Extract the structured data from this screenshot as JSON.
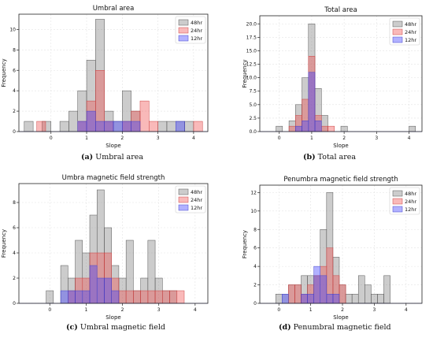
{
  "captions": [
    {
      "label": "(a)",
      "text": "Umbral area"
    },
    {
      "label": "(b)",
      "text": "Total area"
    },
    {
      "label": "(c)",
      "text": "Umbral magnetic field"
    },
    {
      "label": "(d)",
      "text": "Penumbral magnetic field"
    }
  ],
  "colors": {
    "48hr": "#a6a6a6",
    "24hr": "#f08080",
    "12hr": "#6b6bff"
  },
  "chart_data": [
    {
      "type": "bar",
      "title": "Umbral area",
      "xlabel": "Slope",
      "ylabel": "Frequency",
      "xlim": [
        -0.9,
        4.4
      ],
      "ylim": [
        0,
        11.5
      ],
      "xticks": [
        0,
        1,
        2,
        3,
        4
      ],
      "yticks": [
        0,
        2,
        4,
        6,
        8,
        10
      ],
      "bin_width": 0.25,
      "grid": true,
      "legend": "top-right",
      "series": [
        {
          "name": "48hr",
          "bins": [
            [
              -0.75,
              1
            ],
            [
              -0.25,
              1
            ],
            [
              0.25,
              1
            ],
            [
              0.5,
              2
            ],
            [
              0.75,
              4
            ],
            [
              1.0,
              7
            ],
            [
              1.25,
              11
            ],
            [
              1.5,
              2
            ],
            [
              1.75,
              1
            ],
            [
              2.0,
              4
            ],
            [
              2.25,
              2
            ],
            [
              3.0,
              1
            ],
            [
              3.25,
              1
            ],
            [
              3.5,
              1
            ],
            [
              3.75,
              1
            ]
          ]
        },
        {
          "name": "24hr",
          "bins": [
            [
              -0.4,
              1
            ],
            [
              0.75,
              1
            ],
            [
              1.0,
              3
            ],
            [
              1.25,
              6
            ],
            [
              1.5,
              1
            ],
            [
              2.0,
              1
            ],
            [
              2.25,
              2
            ],
            [
              2.5,
              3
            ],
            [
              2.75,
              1
            ],
            [
              4.0,
              1
            ]
          ]
        },
        {
          "name": "12hr",
          "bins": [
            [
              0.75,
              1
            ],
            [
              1.0,
              2
            ],
            [
              1.25,
              1
            ],
            [
              1.5,
              1
            ],
            [
              1.75,
              1
            ],
            [
              2.0,
              1
            ],
            [
              2.25,
              1
            ],
            [
              3.5,
              1
            ]
          ]
        }
      ]
    },
    {
      "type": "bar",
      "title": "Total area",
      "xlabel": "Slope",
      "ylabel": "Frequency",
      "xlim": [
        -0.6,
        4.4
      ],
      "ylim": [
        0,
        21.5
      ],
      "xticks": [
        0,
        1,
        2,
        3,
        4
      ],
      "yticks": [
        0.0,
        2.5,
        5.0,
        7.5,
        10.0,
        12.5,
        15.0,
        17.5,
        20.0
      ],
      "bin_width": 0.2,
      "grid": true,
      "legend": "top-right",
      "series": [
        {
          "name": "48hr",
          "bins": [
            [
              -0.1,
              1
            ],
            [
              0.3,
              2
            ],
            [
              0.5,
              5
            ],
            [
              0.7,
              10
            ],
            [
              0.9,
              20
            ],
            [
              1.1,
              8
            ],
            [
              1.3,
              3
            ],
            [
              1.9,
              1
            ],
            [
              4.0,
              1
            ]
          ]
        },
        {
          "name": "24hr",
          "bins": [
            [
              0.3,
              1
            ],
            [
              0.5,
              3
            ],
            [
              0.7,
              6
            ],
            [
              0.9,
              14
            ],
            [
              1.1,
              3
            ],
            [
              1.3,
              1
            ],
            [
              1.5,
              1
            ]
          ]
        },
        {
          "name": "12hr",
          "bins": [
            [
              0.5,
              1
            ],
            [
              0.7,
              2
            ],
            [
              0.9,
              11
            ],
            [
              1.1,
              2
            ]
          ]
        }
      ]
    },
    {
      "type": "bar",
      "title": "Umbra magnetic field strength",
      "xlabel": "Slope",
      "ylabel": "Frequency",
      "xlim": [
        -0.85,
        4.35
      ],
      "ylim": [
        0,
        9.5
      ],
      "xticks": [
        0,
        1,
        2,
        3,
        4
      ],
      "yticks": [
        0,
        2,
        4,
        6,
        8
      ],
      "bin_width": 0.2,
      "grid": true,
      "legend": "top-right",
      "series": [
        {
          "name": "48hr",
          "bins": [
            [
              -0.1,
              1
            ],
            [
              0.3,
              3
            ],
            [
              0.5,
              2
            ],
            [
              0.7,
              5
            ],
            [
              0.9,
              4
            ],
            [
              1.1,
              7
            ],
            [
              1.3,
              9
            ],
            [
              1.5,
              6
            ],
            [
              1.7,
              3
            ],
            [
              1.9,
              2
            ],
            [
              2.1,
              5
            ],
            [
              2.3,
              1
            ],
            [
              2.5,
              2
            ],
            [
              2.7,
              5
            ],
            [
              2.9,
              2
            ],
            [
              3.1,
              1
            ],
            [
              3.3,
              1
            ]
          ]
        },
        {
          "name": "24hr",
          "bins": [
            [
              0.5,
              1
            ],
            [
              0.7,
              2
            ],
            [
              0.9,
              2
            ],
            [
              1.1,
              4
            ],
            [
              1.3,
              4
            ],
            [
              1.5,
              4
            ],
            [
              1.7,
              2
            ],
            [
              1.9,
              1
            ],
            [
              2.1,
              1
            ],
            [
              2.3,
              1
            ],
            [
              2.5,
              1
            ],
            [
              2.7,
              1
            ],
            [
              2.9,
              1
            ],
            [
              3.1,
              1
            ],
            [
              3.3,
              1
            ],
            [
              3.5,
              1
            ]
          ]
        },
        {
          "name": "12hr",
          "bins": [
            [
              0.3,
              1
            ],
            [
              0.5,
              1
            ],
            [
              0.7,
              1
            ],
            [
              0.9,
              1
            ],
            [
              1.1,
              3
            ],
            [
              1.3,
              2
            ],
            [
              1.5,
              2
            ],
            [
              1.7,
              1
            ]
          ]
        }
      ]
    },
    {
      "type": "bar",
      "title": "Penumbra magnetic field strength",
      "xlabel": "Slope",
      "ylabel": "Frequency",
      "xlim": [
        -0.6,
        4.5
      ],
      "ylim": [
        0,
        12.8
      ],
      "xticks": [
        0,
        1,
        2,
        3,
        4
      ],
      "yticks": [
        0,
        2,
        4,
        6,
        8,
        10,
        12
      ],
      "bin_width": 0.2,
      "grid": true,
      "legend": "top-right",
      "series": [
        {
          "name": "48hr",
          "bins": [
            [
              -0.1,
              1
            ],
            [
              0.1,
              1
            ],
            [
              0.3,
              2
            ],
            [
              0.5,
              2
            ],
            [
              0.7,
              3
            ],
            [
              0.9,
              3
            ],
            [
              1.1,
              3
            ],
            [
              1.3,
              8
            ],
            [
              1.5,
              12
            ],
            [
              1.7,
              5
            ],
            [
              1.9,
              2
            ],
            [
              2.1,
              1
            ],
            [
              2.3,
              1
            ],
            [
              2.5,
              3
            ],
            [
              2.7,
              2
            ],
            [
              2.9,
              1
            ],
            [
              3.1,
              1
            ],
            [
              3.3,
              3
            ]
          ]
        },
        {
          "name": "24hr",
          "bins": [
            [
              0.3,
              2
            ],
            [
              0.5,
              2
            ],
            [
              0.7,
              1
            ],
            [
              0.9,
              2
            ],
            [
              1.1,
              3
            ],
            [
              1.3,
              4
            ],
            [
              1.5,
              6
            ],
            [
              1.7,
              3
            ],
            [
              1.9,
              2
            ]
          ]
        },
        {
          "name": "12hr",
          "bins": [
            [
              0.1,
              1
            ],
            [
              0.7,
              1
            ],
            [
              0.9,
              1
            ],
            [
              1.1,
              4
            ],
            [
              1.3,
              3
            ],
            [
              1.5,
              1
            ],
            [
              1.7,
              1
            ]
          ]
        }
      ]
    }
  ]
}
